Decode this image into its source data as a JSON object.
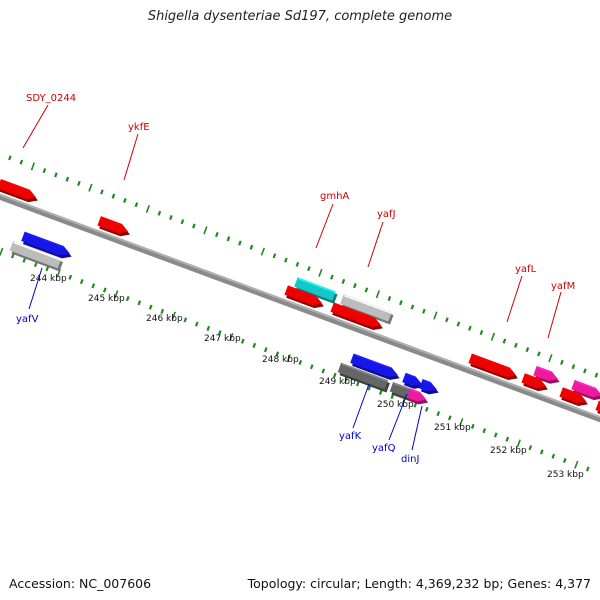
{
  "header": {
    "title": "Shigella dysenteriae Sd197, complete genome"
  },
  "footer": {
    "accession": "Accession: NC_007606",
    "stats": "Topology: circular; Length: 4,369,232 bp; Genes: 4,377"
  },
  "colors": {
    "red": "#ee0000",
    "blue": "#1616e8",
    "cyan": "#14c8c8",
    "magenta": "#ee1a9e",
    "gray_light": "#bcbcbc",
    "gray_dark": "#666666",
    "backbone": "#8a8a8a",
    "tick": "#1f8a1f",
    "label_red": "#cc0000",
    "label_blue": "#0000cc"
  },
  "kbp_labels": [
    "244 kbp",
    "245 kbp",
    "246 kbp",
    "247 kbp",
    "248 kbp",
    "249 kbp",
    "250 kbp",
    "251 kbp",
    "252 kbp",
    "253 kbp"
  ],
  "gene_labels_top": [
    "SDY_0244",
    "ykfE",
    "gmhA",
    "yafJ",
    "yafL",
    "yafM"
  ],
  "gene_labels_bottom": [
    "yafV",
    "yafK",
    "yafQ",
    "dinJ"
  ],
  "features": [
    {
      "name": "red-1",
      "color": "red",
      "strand": "outer",
      "dir": 1,
      "s": -5,
      "e": 32
    },
    {
      "name": "red-2",
      "color": "red",
      "strand": "outer",
      "dir": 1,
      "s": 95,
      "e": 124
    },
    {
      "name": "cyan-1",
      "color": "cyan",
      "strand": "outer2",
      "dir": 0,
      "s": 288,
      "e": 326
    },
    {
      "name": "red-3",
      "color": "red",
      "strand": "outer",
      "dir": 1,
      "s": 282,
      "e": 318
    },
    {
      "name": "gray-1",
      "color": "gray_light",
      "strand": "outer2",
      "dir": 0,
      "s": 334,
      "e": 382
    },
    {
      "name": "red-4",
      "color": "red",
      "strand": "outer",
      "dir": 1,
      "s": 328,
      "e": 377
    },
    {
      "name": "red-5",
      "color": "red",
      "strand": "outer",
      "dir": 1,
      "s": 466,
      "e": 512
    },
    {
      "name": "magenta-1",
      "color": "magenta",
      "strand": "outer2",
      "dir": 1,
      "s": 527,
      "e": 550
    },
    {
      "name": "red-6",
      "color": "red",
      "strand": "outer",
      "dir": 1,
      "s": 519,
      "e": 542
    },
    {
      "name": "magenta-2",
      "color": "magenta",
      "strand": "outer2",
      "dir": 1,
      "s": 565,
      "e": 594
    },
    {
      "name": "red-7",
      "color": "red",
      "strand": "outer",
      "dir": 1,
      "s": 557,
      "e": 582
    },
    {
      "name": "red-8",
      "color": "red",
      "strand": "outer",
      "dir": 1,
      "s": 593,
      "e": 610
    },
    {
      "name": "blue-1",
      "color": "blue",
      "strand": "inner",
      "dir": 1,
      "s": 33,
      "e": 80
    },
    {
      "name": "gray-2",
      "color": "gray_light",
      "strand": "inner2",
      "dir": 0,
      "s": 26,
      "e": 74
    },
    {
      "name": "blue-2",
      "color": "blue",
      "strand": "inner",
      "dir": 1,
      "s": 362,
      "e": 408
    },
    {
      "name": "gray-3",
      "color": "gray_dark",
      "strand": "inner2",
      "dir": 0,
      "s": 354,
      "e": 401
    },
    {
      "name": "blue-3",
      "color": "blue",
      "strand": "inner",
      "dir": 1,
      "s": 414,
      "e": 432
    },
    {
      "name": "blue-4",
      "color": "blue",
      "strand": "inner",
      "dir": 1,
      "s": 431,
      "e": 447
    },
    {
      "name": "gray-4",
      "color": "gray_dark",
      "strand": "inner2",
      "dir": 0,
      "s": 406,
      "e": 424
    },
    {
      "name": "magenta-3",
      "color": "magenta",
      "strand": "inner2",
      "dir": 1,
      "s": 423,
      "e": 441
    }
  ]
}
